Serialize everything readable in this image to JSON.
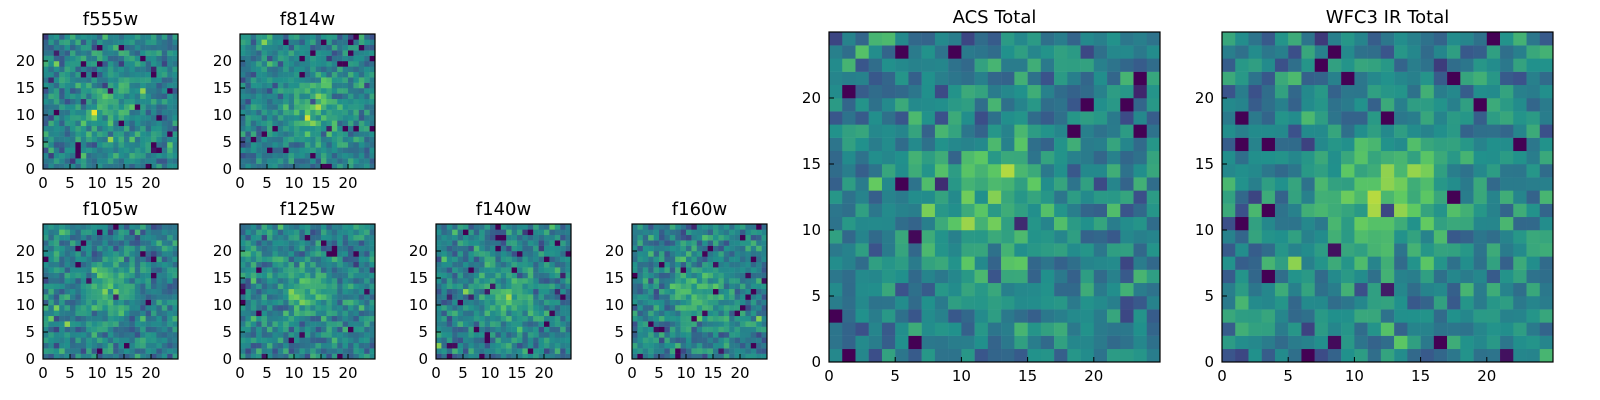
{
  "chart_data": [
    {
      "type": "heatmap",
      "title": "f555w",
      "grid_size": 25,
      "xlim": [
        0,
        25
      ],
      "ylim": [
        0,
        25
      ],
      "xticks": [
        0,
        5,
        10,
        15,
        20
      ],
      "yticks": [
        0,
        5,
        10,
        15,
        20
      ],
      "colormap": "viridis",
      "source_peak": [
        12,
        11
      ],
      "source_strength": 0.18,
      "noise_seed": 11
    },
    {
      "type": "heatmap",
      "title": "f814w",
      "grid_size": 25,
      "xlim": [
        0,
        25
      ],
      "ylim": [
        0,
        25
      ],
      "xticks": [
        0,
        5,
        10,
        15,
        20
      ],
      "yticks": [
        0,
        5,
        10,
        15,
        20
      ],
      "colormap": "viridis",
      "source_peak": [
        13,
        11
      ],
      "source_strength": 0.28,
      "noise_seed": 23
    },
    {
      "type": "heatmap",
      "title": "f105w",
      "grid_size": 25,
      "xlim": [
        0,
        25
      ],
      "ylim": [
        0,
        25
      ],
      "xticks": [
        0,
        5,
        10,
        15,
        20
      ],
      "yticks": [
        0,
        5,
        10,
        15,
        20
      ],
      "colormap": "viridis",
      "source_peak": [
        12,
        13
      ],
      "source_strength": 0.22,
      "noise_seed": 37
    },
    {
      "type": "heatmap",
      "title": "f125w",
      "grid_size": 25,
      "xlim": [
        0,
        25
      ],
      "ylim": [
        0,
        25
      ],
      "xticks": [
        0,
        5,
        10,
        15,
        20
      ],
      "yticks": [
        0,
        5,
        10,
        15,
        20
      ],
      "colormap": "viridis",
      "source_peak": [
        12,
        12
      ],
      "source_strength": 0.2,
      "noise_seed": 41
    },
    {
      "type": "heatmap",
      "title": "f140w",
      "grid_size": 25,
      "xlim": [
        0,
        25
      ],
      "ylim": [
        0,
        25
      ],
      "xticks": [
        0,
        5,
        10,
        15,
        20
      ],
      "yticks": [
        0,
        5,
        10,
        15,
        20
      ],
      "colormap": "viridis",
      "source_peak": [
        13,
        11
      ],
      "source_strength": 0.2,
      "noise_seed": 53
    },
    {
      "type": "heatmap",
      "title": "f160w",
      "grid_size": 25,
      "xlim": [
        0,
        25
      ],
      "ylim": [
        0,
        25
      ],
      "xticks": [
        0,
        5,
        10,
        15,
        20
      ],
      "yticks": [
        0,
        5,
        10,
        15,
        20
      ],
      "colormap": "viridis",
      "source_peak": [
        12,
        11
      ],
      "source_strength": 0.24,
      "noise_seed": 67
    },
    {
      "type": "heatmap",
      "title": "ACS Total",
      "grid_size": 25,
      "xlim": [
        0,
        25
      ],
      "ylim": [
        0,
        25
      ],
      "xticks": [
        0,
        5,
        10,
        15,
        20
      ],
      "yticks": [
        0,
        5,
        10,
        15,
        20
      ],
      "colormap": "viridis",
      "source_peak": [
        12,
        12
      ],
      "source_strength": 0.24,
      "noise_seed": 79
    },
    {
      "type": "heatmap",
      "title": "WFC3 IR Total",
      "grid_size": 25,
      "xlim": [
        0,
        25
      ],
      "ylim": [
        0,
        25
      ],
      "xticks": [
        0,
        5,
        10,
        15,
        20
      ],
      "yticks": [
        0,
        5,
        10,
        15,
        20
      ],
      "colormap": "viridis",
      "source_peak": [
        12,
        12
      ],
      "source_strength": 0.34,
      "noise_seed": 97
    }
  ]
}
